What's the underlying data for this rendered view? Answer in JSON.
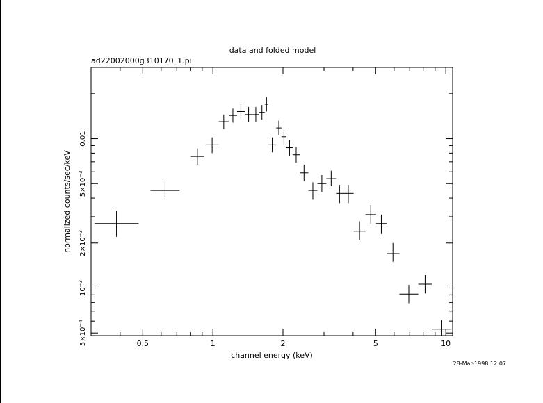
{
  "chart_data": {
    "type": "scatter",
    "title": "data and folded model",
    "subtitle": "ad22002000g310170_1.pi",
    "xlabel": "channel energy (keV)",
    "ylabel": "normalized counts/sec/keV",
    "timestamp": "28-Mar-1998 12:07",
    "x_scale": "log",
    "y_scale": "log",
    "xlim": [
      0.3,
      10.7
    ],
    "ylim": [
      0.00048,
      0.03
    ],
    "grid": false,
    "x_ticks": [
      {
        "value": 0.5,
        "label": "0.5"
      },
      {
        "value": 1,
        "label": "1"
      },
      {
        "value": 2,
        "label": "2"
      },
      {
        "value": 5,
        "label": "5"
      },
      {
        "value": 10,
        "label": "10"
      }
    ],
    "y_ticks": [
      {
        "value": 0.0005,
        "mant": "5×10",
        "exp": "−4"
      },
      {
        "value": 0.001,
        "mant": "10",
        "exp": "−3"
      },
      {
        "value": 0.002,
        "mant": "2×10",
        "exp": "−3"
      },
      {
        "value": 0.005,
        "mant": "5×10",
        "exp": "−3"
      },
      {
        "value": 0.01,
        "mant": "0.01",
        "exp": ""
      }
    ],
    "points": [
      {
        "xlo": 0.31,
        "xhi": 0.48,
        "y": 0.0027,
        "ylo": 0.0022,
        "yhi": 0.0033
      },
      {
        "xlo": 0.54,
        "xhi": 0.72,
        "y": 0.0045,
        "ylo": 0.0039,
        "yhi": 0.0052
      },
      {
        "xlo": 0.8,
        "xhi": 0.92,
        "y": 0.0076,
        "ylo": 0.0067,
        "yhi": 0.0086
      },
      {
        "xlo": 0.93,
        "xhi": 1.06,
        "y": 0.0091,
        "ylo": 0.008,
        "yhi": 0.0102
      },
      {
        "xlo": 1.06,
        "xhi": 1.17,
        "y": 0.013,
        "ylo": 0.0116,
        "yhi": 0.0145
      },
      {
        "xlo": 1.17,
        "xhi": 1.27,
        "y": 0.0143,
        "ylo": 0.0128,
        "yhi": 0.0159
      },
      {
        "xlo": 1.27,
        "xhi": 1.37,
        "y": 0.0152,
        "ylo": 0.0136,
        "yhi": 0.017
      },
      {
        "xlo": 1.37,
        "xhi": 1.48,
        "y": 0.0145,
        "ylo": 0.0129,
        "yhi": 0.0163
      },
      {
        "xlo": 1.48,
        "xhi": 1.58,
        "y": 0.0145,
        "ylo": 0.0129,
        "yhi": 0.0163
      },
      {
        "xlo": 1.58,
        "xhi": 1.67,
        "y": 0.015,
        "ylo": 0.0134,
        "yhi": 0.0168
      },
      {
        "xlo": 1.67,
        "xhi": 1.73,
        "y": 0.017,
        "ylo": 0.0152,
        "yhi": 0.019
      },
      {
        "xlo": 1.73,
        "xhi": 1.87,
        "y": 0.0091,
        "ylo": 0.0081,
        "yhi": 0.0102
      },
      {
        "xlo": 1.87,
        "xhi": 1.97,
        "y": 0.0118,
        "ylo": 0.0105,
        "yhi": 0.0132
      },
      {
        "xlo": 1.97,
        "xhi": 2.07,
        "y": 0.0103,
        "ylo": 0.0092,
        "yhi": 0.0115
      },
      {
        "xlo": 2.07,
        "xhi": 2.2,
        "y": 0.0087,
        "ylo": 0.0077,
        "yhi": 0.0098
      },
      {
        "xlo": 2.2,
        "xhi": 2.36,
        "y": 0.0078,
        "ylo": 0.0069,
        "yhi": 0.0088
      },
      {
        "xlo": 2.36,
        "xhi": 2.57,
        "y": 0.0059,
        "ylo": 0.0052,
        "yhi": 0.0067
      },
      {
        "xlo": 2.57,
        "xhi": 2.81,
        "y": 0.0045,
        "ylo": 0.0039,
        "yhi": 0.0051
      },
      {
        "xlo": 2.81,
        "xhi": 3.07,
        "y": 0.005,
        "ylo": 0.0044,
        "yhi": 0.0057
      },
      {
        "xlo": 3.07,
        "xhi": 3.38,
        "y": 0.0054,
        "ylo": 0.0048,
        "yhi": 0.0061
      },
      {
        "xlo": 3.38,
        "xhi": 3.62,
        "y": 0.0043,
        "ylo": 0.0037,
        "yhi": 0.0049
      },
      {
        "xlo": 3.62,
        "xhi": 4.02,
        "y": 0.0043,
        "ylo": 0.0037,
        "yhi": 0.0049
      },
      {
        "xlo": 4.02,
        "xhi": 4.52,
        "y": 0.0024,
        "ylo": 0.0021,
        "yhi": 0.0028
      },
      {
        "xlo": 4.52,
        "xhi": 5.02,
        "y": 0.0031,
        "ylo": 0.0027,
        "yhi": 0.0036
      },
      {
        "xlo": 5.02,
        "xhi": 5.57,
        "y": 0.0027,
        "ylo": 0.0023,
        "yhi": 0.0031
      },
      {
        "xlo": 5.57,
        "xhi": 6.32,
        "y": 0.0017,
        "ylo": 0.0015,
        "yhi": 0.002
      },
      {
        "xlo": 6.32,
        "xhi": 7.62,
        "y": 0.00091,
        "ylo": 0.00079,
        "yhi": 0.00105
      },
      {
        "xlo": 7.62,
        "xhi": 8.72,
        "y": 0.00106,
        "ylo": 0.00092,
        "yhi": 0.00122
      },
      {
        "xlo": 8.72,
        "xhi": 10.6,
        "y": 0.00053,
        "ylo": 0.00046,
        "yhi": 0.00061
      }
    ]
  }
}
